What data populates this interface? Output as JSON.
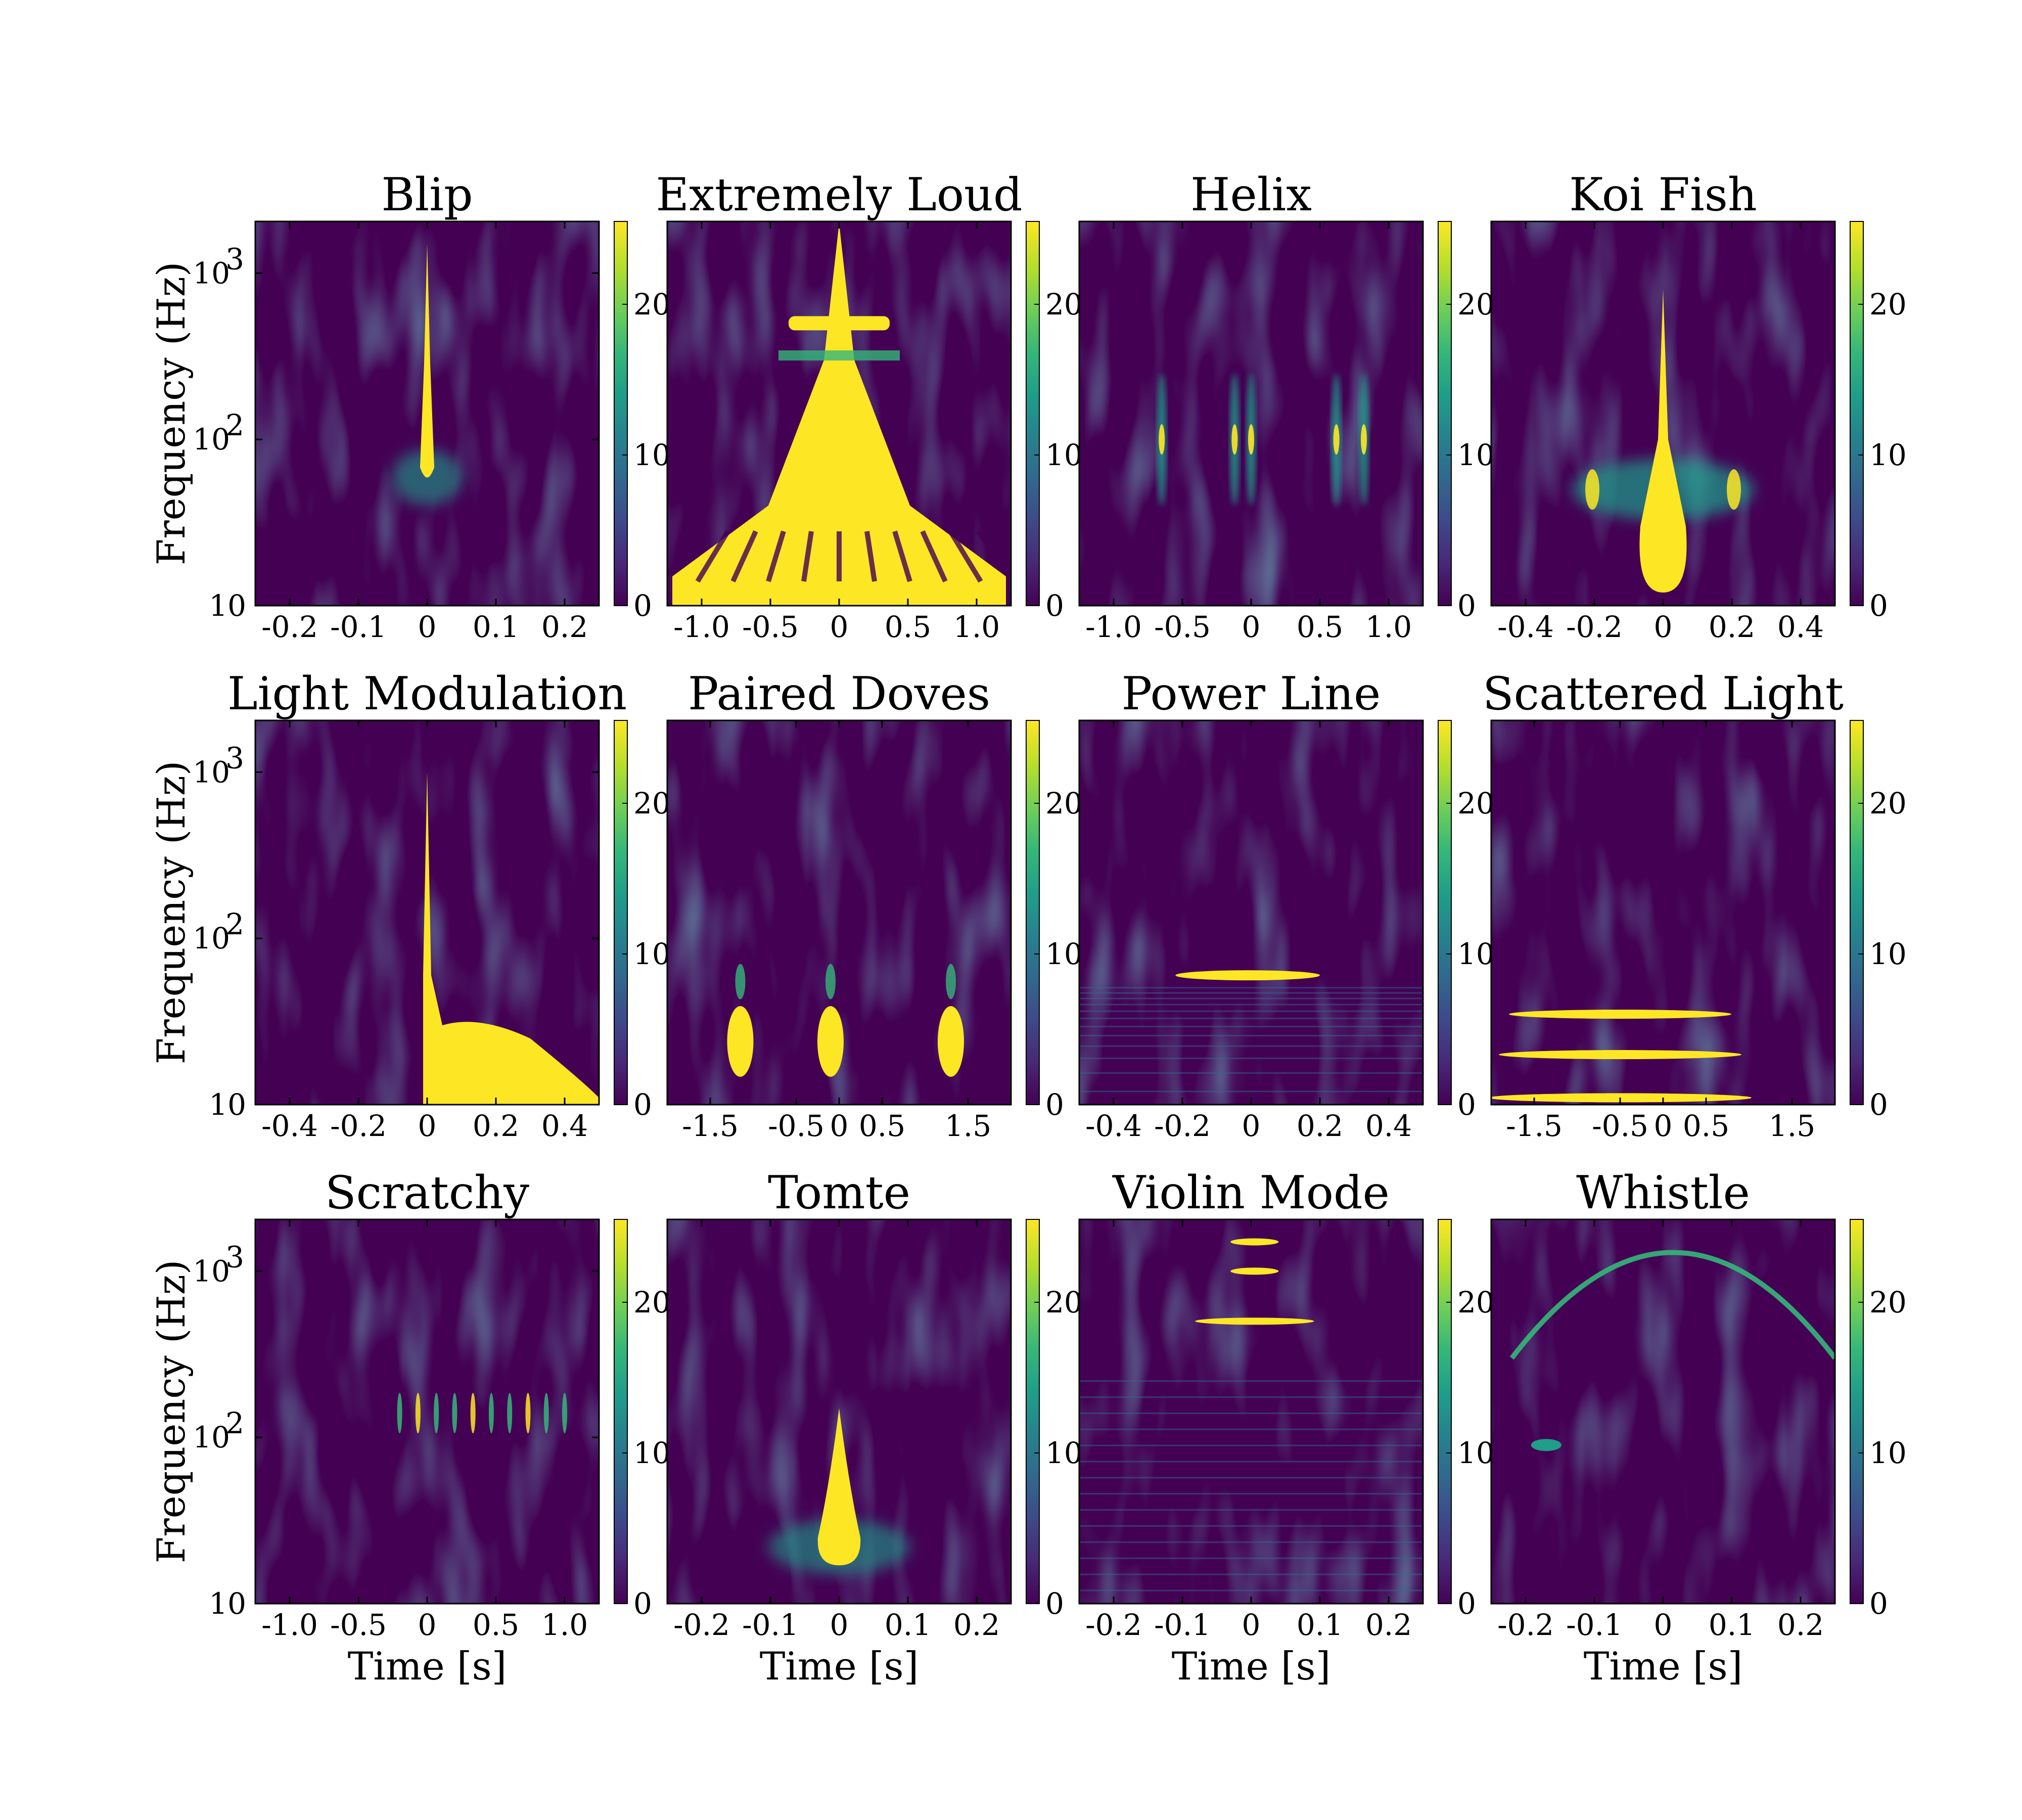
{
  "chart_data": [
    {
      "type": "heatmap",
      "title": "Blip",
      "xlabel": "",
      "ylabel": "Frequency (Hz)",
      "xlim": [
        -0.25,
        0.25
      ],
      "x_ticks": [
        "-0.2",
        "-0.1",
        "0",
        "0.1",
        "0.2"
      ],
      "x_tick_values": [
        -0.2,
        -0.1,
        0,
        0.1,
        0.2
      ],
      "ylim": [
        10,
        2048
      ],
      "y_scale": "log",
      "y_ticks": [
        "10",
        "10^2",
        "10^3"
      ],
      "y_tick_values": [
        10,
        100,
        1000
      ],
      "colorbar_ticks": [
        "0",
        "10",
        "20"
      ],
      "colorbar_tick_values": [
        0,
        10,
        20
      ],
      "colorbar_range": [
        0,
        25.5
      ],
      "features": [
        {
          "kind": "spike",
          "t": 0,
          "f_low": 55,
          "f_high": 1500,
          "width": 0.006
        }
      ]
    },
    {
      "type": "heatmap",
      "title": "Extremely Loud",
      "xlabel": "",
      "ylabel": "",
      "xlim": [
        -1.25,
        1.25
      ],
      "x_ticks": [
        "-1.0",
        "-0.5",
        "0",
        "0.5",
        "1.0"
      ],
      "x_tick_values": [
        -1,
        -0.5,
        0,
        0.5,
        1
      ],
      "ylim": [
        10,
        2048
      ],
      "y_scale": "log",
      "y_ticks": [],
      "y_tick_values": [],
      "colorbar_ticks": [
        "0",
        "10",
        "20"
      ],
      "colorbar_tick_values": [
        0,
        10,
        20
      ],
      "colorbar_range": [
        0,
        25.5
      ],
      "features": [
        {
          "kind": "cone",
          "t": 0,
          "f_low": 10,
          "f_high": 2000,
          "width": 1.1
        }
      ]
    },
    {
      "type": "heatmap",
      "title": "Helix",
      "xlabel": "",
      "ylabel": "",
      "xlim": [
        -1.25,
        1.25
      ],
      "x_ticks": [
        "-1.0",
        "-0.5",
        "0",
        "0.5",
        "1.0"
      ],
      "x_tick_values": [
        -1,
        -0.5,
        0,
        0.5,
        1
      ],
      "ylim": [
        10,
        2048
      ],
      "y_scale": "log",
      "y_ticks": [],
      "y_tick_values": [],
      "colorbar_ticks": [
        "0",
        "10",
        "20"
      ],
      "colorbar_tick_values": [
        0,
        10,
        20
      ],
      "colorbar_range": [
        0,
        25.5
      ],
      "features": [
        {
          "kind": "pulses",
          "t": [
            -0.65,
            -0.12,
            0,
            0.62,
            0.82
          ],
          "f_low": 40,
          "f_high": 250
        }
      ]
    },
    {
      "type": "heatmap",
      "title": "Koi Fish",
      "xlabel": "",
      "ylabel": "",
      "xlim": [
        -0.5,
        0.5
      ],
      "x_ticks": [
        "-0.4",
        "-0.2",
        "0",
        "0.2",
        "0.4"
      ],
      "x_tick_values": [
        -0.4,
        -0.2,
        0,
        0.2,
        0.4
      ],
      "ylim": [
        10,
        2048
      ],
      "y_scale": "log",
      "y_ticks": [],
      "y_tick_values": [],
      "colorbar_ticks": [
        "0",
        "10",
        "20"
      ],
      "colorbar_tick_values": [
        0,
        10,
        20
      ],
      "colorbar_range": [
        0,
        25.5
      ],
      "features": [
        {
          "kind": "fish",
          "t": 0,
          "f_low": 12,
          "f_high": 800,
          "width": 0.09
        }
      ]
    },
    {
      "type": "heatmap",
      "title": "Light Modulation",
      "xlabel": "",
      "ylabel": "Frequency (Hz)",
      "xlim": [
        -0.5,
        0.5
      ],
      "x_ticks": [
        "-0.4",
        "-0.2",
        "0",
        "0.2",
        "0.4"
      ],
      "x_tick_values": [
        -0.4,
        -0.2,
        0,
        0.2,
        0.4
      ],
      "ylim": [
        10,
        2048
      ],
      "y_scale": "log",
      "y_ticks": [
        "10",
        "10^2",
        "10^3"
      ],
      "y_tick_values": [
        10,
        100,
        1000
      ],
      "colorbar_ticks": [
        "0",
        "10",
        "20"
      ],
      "colorbar_tick_values": [
        0,
        10,
        20
      ],
      "colorbar_range": [
        0,
        25.5
      ],
      "features": [
        {
          "kind": "spike_with_tail",
          "t": 0,
          "f_low": 10,
          "f_high": 1000,
          "tail_t": 0.48,
          "tail_f": [
            10,
            30
          ]
        }
      ]
    },
    {
      "type": "heatmap",
      "title": "Paired Doves",
      "xlabel": "",
      "ylabel": "",
      "xlim": [
        -2,
        2
      ],
      "x_ticks": [
        "-1.5",
        "-0.5",
        "0",
        "0.5",
        "1.5"
      ],
      "x_tick_values": [
        -1.5,
        -0.5,
        0,
        0.5,
        1.5
      ],
      "ylim": [
        10,
        2048
      ],
      "y_scale": "log",
      "y_ticks": [],
      "y_tick_values": [],
      "colorbar_ticks": [
        "0",
        "10",
        "20"
      ],
      "colorbar_tick_values": [
        0,
        10,
        20
      ],
      "colorbar_range": [
        0,
        25.5
      ],
      "features": [
        {
          "kind": "blobs",
          "t": [
            -1.15,
            -0.1,
            1.3
          ],
          "f_low": 15,
          "f_high": 70
        }
      ]
    },
    {
      "type": "heatmap",
      "title": "Power Line",
      "xlabel": "",
      "ylabel": "",
      "xlim": [
        -0.5,
        0.5
      ],
      "x_ticks": [
        "-0.4",
        "-0.2",
        "0",
        "0.2",
        "0.4"
      ],
      "x_tick_values": [
        -0.4,
        -0.2,
        0,
        0.2,
        0.4
      ],
      "ylim": [
        10,
        2048
      ],
      "y_scale": "log",
      "y_ticks": [],
      "y_tick_values": [],
      "colorbar_ticks": [
        "0",
        "10",
        "20"
      ],
      "colorbar_tick_values": [
        0,
        10,
        20
      ],
      "colorbar_range": [
        0,
        25.5
      ],
      "features": [
        {
          "kind": "line",
          "f": 60,
          "t_start": -0.22,
          "t_end": 0.2
        }
      ]
    },
    {
      "type": "heatmap",
      "title": "Scattered Light",
      "xlabel": "",
      "ylabel": "",
      "xlim": [
        -2,
        2
      ],
      "x_ticks": [
        "-1.5",
        "-0.5",
        "0",
        "0.5",
        "1.5"
      ],
      "x_tick_values": [
        -1.5,
        -0.5,
        0,
        0.5,
        1.5
      ],
      "ylim": [
        10,
        2048
      ],
      "y_scale": "log",
      "y_ticks": [],
      "y_tick_values": [],
      "colorbar_ticks": [
        "0",
        "10",
        "20"
      ],
      "colorbar_tick_values": [
        0,
        10,
        20
      ],
      "colorbar_range": [
        0,
        25.5
      ],
      "features": [
        {
          "kind": "arches",
          "f": [
            11,
            20,
            35
          ],
          "t_start": -2,
          "t_end": 0.5
        }
      ]
    },
    {
      "type": "heatmap",
      "title": "Scratchy",
      "xlabel": "Time [s]",
      "ylabel": "Frequency (Hz)",
      "xlim": [
        -1.25,
        1.25
      ],
      "x_ticks": [
        "-1.0",
        "-0.5",
        "0",
        "0.5",
        "1.0"
      ],
      "x_tick_values": [
        -1,
        -0.5,
        0,
        0.5,
        1
      ],
      "ylim": [
        10,
        2048
      ],
      "y_scale": "log",
      "y_ticks": [
        "10",
        "10^2",
        "10^3"
      ],
      "y_tick_values": [
        10,
        100,
        1000
      ],
      "colorbar_ticks": [
        "0",
        "10",
        "20"
      ],
      "colorbar_tick_values": [
        0,
        10,
        20
      ],
      "colorbar_range": [
        0,
        25.5
      ],
      "features": [
        {
          "kind": "comb",
          "t_start": -0.2,
          "t_end": 1.0,
          "f_low": 80,
          "f_high": 200
        }
      ]
    },
    {
      "type": "heatmap",
      "title": "Tomte",
      "xlabel": "Time [s]",
      "ylabel": "",
      "xlim": [
        -0.25,
        0.25
      ],
      "x_ticks": [
        "-0.2",
        "-0.1",
        "0",
        "0.1",
        "0.2"
      ],
      "x_tick_values": [
        -0.2,
        -0.1,
        0,
        0.1,
        0.2
      ],
      "ylim": [
        10,
        2048
      ],
      "y_scale": "log",
      "y_ticks": [],
      "y_tick_values": [],
      "colorbar_ticks": [
        "0",
        "10",
        "20"
      ],
      "colorbar_tick_values": [
        0,
        10,
        20
      ],
      "colorbar_range": [
        0,
        25.5
      ],
      "features": [
        {
          "kind": "teardrop",
          "t": 0,
          "f_low": 18,
          "f_high": 150,
          "width": 0.03
        }
      ]
    },
    {
      "type": "heatmap",
      "title": "Violin Mode",
      "xlabel": "Time [s]",
      "ylabel": "",
      "xlim": [
        -0.25,
        0.25
      ],
      "x_ticks": [
        "-0.2",
        "-0.1",
        "0",
        "0.1",
        "0.2"
      ],
      "x_tick_values": [
        -0.2,
        -0.1,
        0,
        0.1,
        0.2
      ],
      "ylim": [
        10,
        2048
      ],
      "y_scale": "log",
      "y_ticks": [],
      "y_tick_values": [],
      "colorbar_ticks": [
        "0",
        "10",
        "20"
      ],
      "colorbar_tick_values": [
        0,
        10,
        20
      ],
      "colorbar_range": [
        0,
        25.5
      ],
      "features": [
        {
          "kind": "lines",
          "f": [
            500,
            1000,
            1500
          ],
          "t_start": -0.03,
          "t_end": 0.04
        }
      ]
    },
    {
      "type": "heatmap",
      "title": "Whistle",
      "xlabel": "Time [s]",
      "ylabel": "",
      "xlim": [
        -0.25,
        0.25
      ],
      "x_ticks": [
        "-0.2",
        "-0.1",
        "0",
        "0.1",
        "0.2"
      ],
      "x_tick_values": [
        -0.2,
        -0.1,
        0,
        0.1,
        0.2
      ],
      "ylim": [
        10,
        2048
      ],
      "y_scale": "log",
      "y_ticks": [],
      "y_tick_values": [],
      "colorbar_ticks": [
        "0",
        "10",
        "20"
      ],
      "colorbar_tick_values": [
        0,
        10,
        20
      ],
      "colorbar_range": [
        0,
        25.5
      ],
      "features": [
        {
          "kind": "arc",
          "t_start": -0.22,
          "t_end": 0.25,
          "f_peak": 1700,
          "f_edge": 300
        }
      ]
    }
  ],
  "colormap": [
    "#440154",
    "#482878",
    "#3e4989",
    "#31688e",
    "#26828e",
    "#1f9e89",
    "#35b779",
    "#6ece58",
    "#b5de2b",
    "#fde725"
  ]
}
